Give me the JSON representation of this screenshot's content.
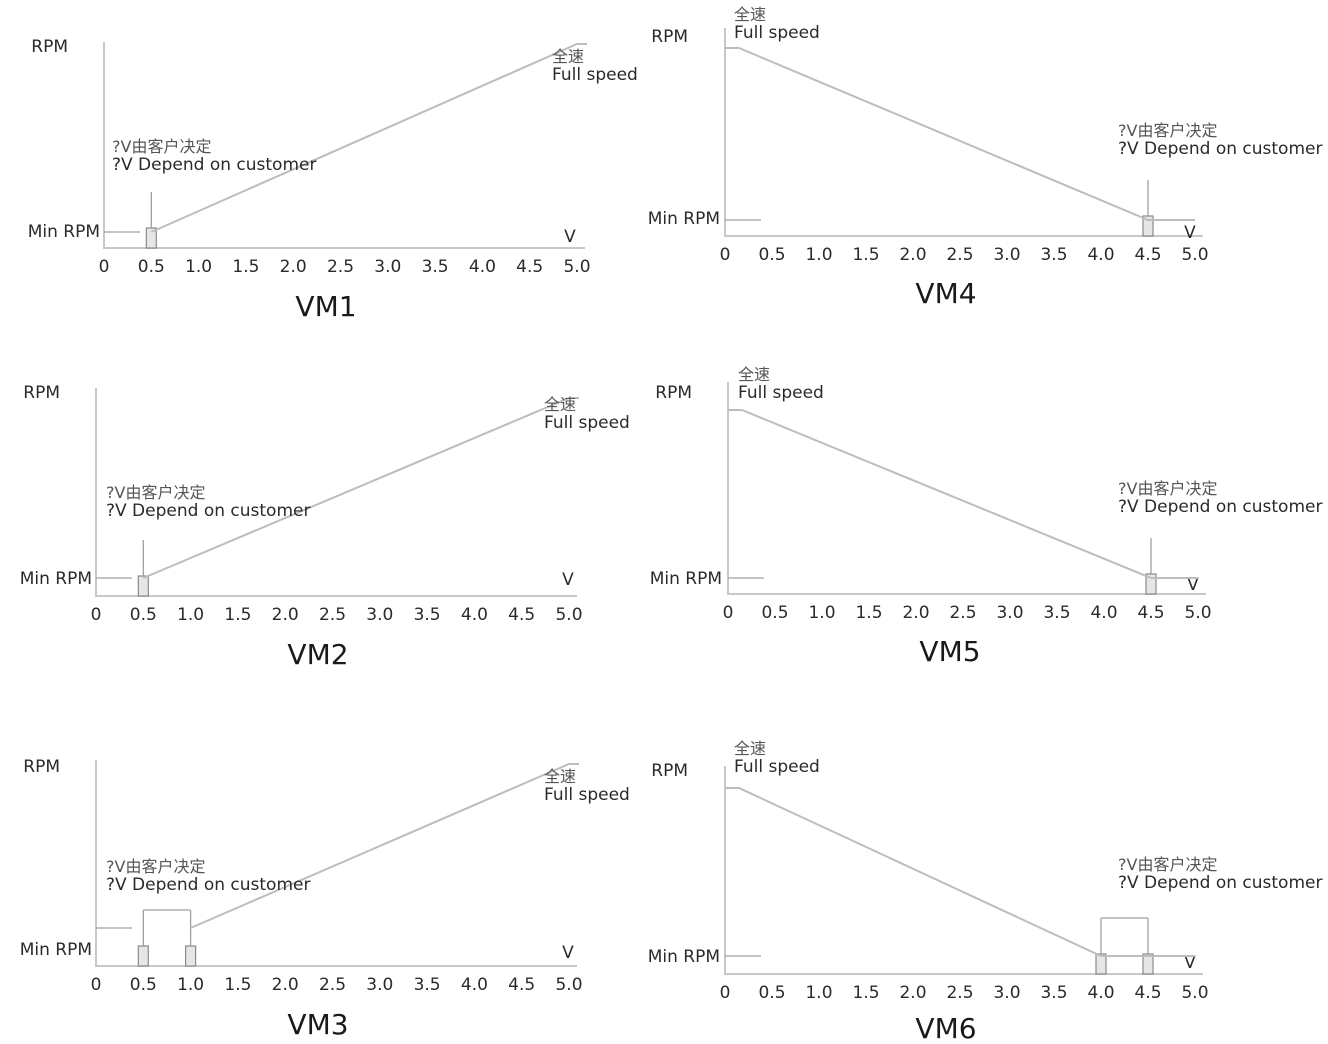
{
  "chart_data": [
    {
      "type": "line",
      "title": "VM1",
      "ylabel": "RPM",
      "xlabel": "V",
      "min_label": "Min RPM",
      "x_ticks": [
        "0",
        "0.5",
        "1.0",
        "1.5",
        "2.0",
        "2.5",
        "3.0",
        "3.5",
        "4.0",
        "4.5",
        "5.0"
      ],
      "xlim": [
        0,
        5
      ],
      "points": [
        [
          0.5,
          "Min RPM"
        ],
        [
          5.0,
          "Full speed"
        ]
      ],
      "threshold_v": [
        0.5
      ],
      "annotations": {
        "full_cn": "全速",
        "full_en": "Full speed",
        "cust_cn": "?V由客户决定",
        "cust_en": "?V Depend on customer"
      }
    },
    {
      "type": "line",
      "title": "VM2",
      "ylabel": "RPM",
      "xlabel": "V",
      "min_label": "Min RPM",
      "x_ticks": [
        "0",
        "0.5",
        "1.0",
        "1.5",
        "2.0",
        "2.5",
        "3.0",
        "3.5",
        "4.0",
        "4.5",
        "5.0"
      ],
      "xlim": [
        0,
        5
      ],
      "points": [
        [
          0.5,
          "Min RPM"
        ],
        [
          5.0,
          "Full speed"
        ]
      ],
      "threshold_v": [
        0.5
      ],
      "annotations": {
        "full_cn": "全速",
        "full_en": "Full speed",
        "cust_cn": "?V由客户决定",
        "cust_en": "?V Depend on customer"
      }
    },
    {
      "type": "line",
      "title": "VM3",
      "ylabel": "RPM",
      "xlabel": "V",
      "min_label": "Min RPM",
      "x_ticks": [
        "0",
        "0.5",
        "1.0",
        "1.5",
        "2.0",
        "2.5",
        "3.0",
        "3.5",
        "4.0",
        "4.5",
        "5.0"
      ],
      "xlim": [
        0,
        5
      ],
      "points": [
        [
          1.0,
          "Min RPM"
        ],
        [
          5.0,
          "Full speed"
        ]
      ],
      "threshold_v": [
        0.5,
        1.0
      ],
      "annotations": {
        "full_cn": "全速",
        "full_en": "Full speed",
        "cust_cn": "?V由客户决定",
        "cust_en": "?V Depend on customer"
      }
    },
    {
      "type": "line",
      "title": "VM4",
      "ylabel": "RPM",
      "xlabel": "V",
      "min_label": "Min RPM",
      "x_ticks": [
        "0",
        "0.5",
        "1.0",
        "1.5",
        "2.0",
        "2.5",
        "3.0",
        "3.5",
        "4.0",
        "4.5",
        "5.0"
      ],
      "xlim": [
        0,
        5
      ],
      "points": [
        [
          0.0,
          "Full speed"
        ],
        [
          4.5,
          "Min RPM"
        ]
      ],
      "threshold_v": [
        4.5
      ],
      "annotations": {
        "full_cn": "全速",
        "full_en": "Full speed",
        "cust_cn": "?V由客户决定",
        "cust_en": "?V Depend on customer"
      }
    },
    {
      "type": "line",
      "title": "VM5",
      "ylabel": "RPM",
      "xlabel": "V",
      "min_label": "Min RPM",
      "x_ticks": [
        "0",
        "0.5",
        "1.0",
        "1.5",
        "2.0",
        "2.5",
        "3.0",
        "3.5",
        "4.0",
        "4.5",
        "5.0"
      ],
      "xlim": [
        0,
        5
      ],
      "points": [
        [
          0.0,
          "Full speed"
        ],
        [
          4.5,
          "Min RPM"
        ]
      ],
      "threshold_v": [
        4.5
      ],
      "annotations": {
        "full_cn": "全速",
        "full_en": "Full speed",
        "cust_cn": "?V由客户决定",
        "cust_en": "?V Depend on customer"
      }
    },
    {
      "type": "line",
      "title": "VM6",
      "ylabel": "RPM",
      "xlabel": "V",
      "min_label": "Min RPM",
      "x_ticks": [
        "0",
        "0.5",
        "1.0",
        "1.5",
        "2.0",
        "2.5",
        "3.0",
        "3.5",
        "4.0",
        "4.5",
        "5.0"
      ],
      "xlim": [
        0,
        5
      ],
      "points": [
        [
          0.0,
          "Full speed"
        ],
        [
          4.0,
          "Min RPM"
        ]
      ],
      "threshold_v": [
        4.0,
        4.5
      ],
      "annotations": {
        "full_cn": "全速",
        "full_en": "Full speed",
        "cust_cn": "?V由客户决定",
        "cust_en": "?V Depend on customer"
      }
    }
  ]
}
